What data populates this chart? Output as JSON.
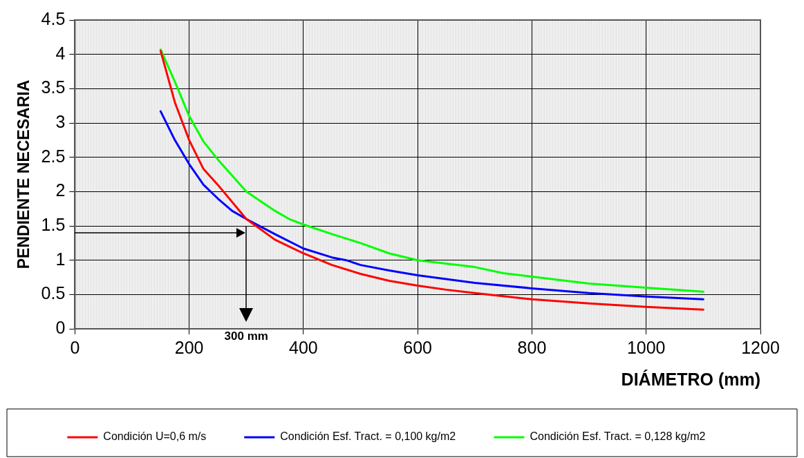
{
  "chart_data": {
    "type": "line",
    "xlabel": "DIÁMETRO (mm)",
    "ylabel": "PENDIENTE NECESARIA",
    "xlim": [
      0,
      1200
    ],
    "xticks": [
      0,
      200,
      400,
      600,
      800,
      1000,
      1200
    ],
    "ylim": [
      0,
      4.5
    ],
    "yticks": [
      0,
      0.5,
      1,
      1.5,
      2,
      2.5,
      3,
      3.5,
      4,
      4.5
    ],
    "grid": true,
    "legend": "bottom",
    "marker": "none",
    "line_style": "solid",
    "ref_lines": [
      {
        "axis": "x",
        "value": 300,
        "label": "300 mm",
        "color": "#000000"
      },
      {
        "axis": "y",
        "value": 1.4,
        "color": "#000000"
      }
    ],
    "series": [
      {
        "name": "Condición U=0,6 m/s",
        "color": "#ff0000",
        "x": [
          150,
          175,
          200,
          225,
          250,
          300,
          350,
          375,
          400,
          450,
          500,
          550,
          600,
          650,
          700,
          800,
          900,
          1000,
          1100
        ],
        "values": [
          4.05,
          3.3,
          2.75,
          2.33,
          2.1,
          1.6,
          1.3,
          1.2,
          1.1,
          0.93,
          0.8,
          0.7,
          0.63,
          0.57,
          0.52,
          0.43,
          0.37,
          0.32,
          0.28
        ]
      },
      {
        "name": "Condición Esf. Tract. = 0,100 kg/m2",
        "color": "#0000ff",
        "x": [
          150,
          175,
          200,
          225,
          250,
          275,
          300,
          350,
          400,
          450,
          475,
          500,
          550,
          600,
          700,
          800,
          900,
          1000,
          1100
        ],
        "values": [
          3.17,
          2.75,
          2.4,
          2.1,
          1.9,
          1.72,
          1.6,
          1.38,
          1.17,
          1.04,
          1.0,
          0.93,
          0.85,
          0.78,
          0.67,
          0.59,
          0.52,
          0.47,
          0.43
        ]
      },
      {
        "name": "Condición Esf. Tract. = 0,128 kg/m2",
        "color": "#00ff00",
        "x": [
          150,
          175,
          200,
          225,
          250,
          300,
          350,
          375,
          400,
          450,
          500,
          550,
          600,
          700,
          750,
          800,
          900,
          1000,
          1100
        ],
        "values": [
          4.07,
          3.6,
          3.1,
          2.73,
          2.47,
          2.0,
          1.72,
          1.6,
          1.52,
          1.38,
          1.25,
          1.1,
          1.0,
          0.9,
          0.81,
          0.76,
          0.66,
          0.6,
          0.54
        ]
      }
    ]
  }
}
